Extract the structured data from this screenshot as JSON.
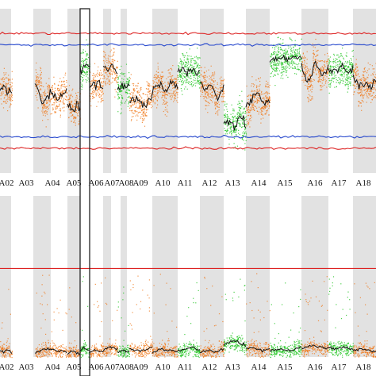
{
  "chart_data": [
    {
      "type": "scatter",
      "panel": "top",
      "chromosomes": [
        "A02",
        "A03",
        "A04",
        "A05",
        "A06",
        "A07",
        "A08",
        "A09",
        "A10",
        "A11",
        "A12",
        "A13",
        "A14",
        "A15",
        "A16",
        "A17",
        "A18"
      ],
      "segments": [
        {
          "chrom": "A02",
          "color": "orange",
          "trend": [
            0.0,
            0.02,
            -0.01,
            0.02,
            0.0
          ]
        },
        {
          "chrom": "A03",
          "color": "orange",
          "trend": [
            0.05,
            -0.08,
            -0.02,
            -0.05,
            0.0
          ]
        },
        {
          "chrom": "A04",
          "color": "orange",
          "trend": [
            -0.08,
            -0.1,
            -0.12,
            -0.09,
            -0.11
          ]
        },
        {
          "chrom": "A05",
          "color": "green",
          "trend": [
            0.12,
            0.15,
            0.14,
            0.16,
            0.13
          ]
        },
        {
          "chrom": "A06",
          "color": "orange",
          "trend": [
            0.02,
            0.05,
            0.03,
            0.04,
            0.02
          ]
        },
        {
          "chrom": "A07",
          "color": "orange",
          "trend": [
            0.15,
            0.12,
            0.16,
            0.1
          ]
        },
        {
          "chrom": "A08",
          "color": "green",
          "trend": [
            0.0,
            0.03,
            0.02
          ]
        },
        {
          "chrom": "A09",
          "color": "orange",
          "trend": [
            -0.05,
            -0.06,
            -0.1,
            -0.04
          ]
        },
        {
          "chrom": "A10",
          "color": "orange",
          "trend": [
            0.0,
            0.06,
            -0.02,
            0.05,
            0.02
          ]
        },
        {
          "chrom": "A11",
          "color": "green",
          "trend": [
            0.12,
            0.12,
            0.13,
            0.12,
            0.12
          ]
        },
        {
          "chrom": "A12",
          "color": "orange",
          "trend": [
            0.05,
            0.0,
            0.03,
            -0.05,
            0.02
          ]
        },
        {
          "chrom": "A13",
          "color": "green",
          "trend": [
            -0.18,
            -0.2,
            -0.22,
            -0.15,
            -0.2
          ]
        },
        {
          "chrom": "A14",
          "color": "orange",
          "trend": [
            -0.1,
            -0.05,
            -0.02,
            -0.08,
            -0.05
          ]
        },
        {
          "chrom": "A15",
          "color": "green",
          "trend": [
            0.18,
            0.2,
            0.19,
            0.21,
            0.2
          ]
        },
        {
          "chrom": "A16",
          "color": "orange",
          "trend": [
            0.15,
            0.05,
            0.18,
            0.1,
            0.12
          ]
        },
        {
          "chrom": "A17",
          "color": "green",
          "trend": [
            0.13,
            0.12,
            0.14,
            0.12,
            0.13
          ]
        },
        {
          "chrom": "A18",
          "color": "orange",
          "trend": [
            0.08,
            0.02,
            0.05,
            0.03,
            0.05
          ]
        }
      ],
      "threshold_lines": [
        {
          "color": "red",
          "value": 0.35
        },
        {
          "color": "blue",
          "value": 0.28
        },
        {
          "color": "blue",
          "value": -0.28
        },
        {
          "color": "red",
          "value": -0.35
        }
      ],
      "highlighted_chromosome": "A05"
    },
    {
      "type": "scatter",
      "panel": "bottom",
      "chromosomes": [
        "A02",
        "A03",
        "A04",
        "A05",
        "A06",
        "A07",
        "A08",
        "A09",
        "A10",
        "A11",
        "A12",
        "A13",
        "A14",
        "A15",
        "A16",
        "A17",
        "A18"
      ],
      "segments": [
        {
          "chrom": "A02",
          "color": "orange",
          "trend": [
            0.04,
            0.03,
            0.05,
            0.02
          ]
        },
        {
          "chrom": "A03",
          "color": "orange",
          "trend": [
            0.03,
            0.05,
            0.04,
            0.03
          ]
        },
        {
          "chrom": "A04",
          "color": "orange",
          "trend": [
            0.02,
            0.04,
            0.03,
            0.02
          ]
        },
        {
          "chrom": "A05",
          "color": "green",
          "trend": [
            0.04,
            0.06,
            0.05,
            0.04
          ]
        },
        {
          "chrom": "A06",
          "color": "orange",
          "trend": [
            0.03,
            0.05,
            0.03,
            0.04
          ]
        },
        {
          "chrom": "A07",
          "color": "orange",
          "trend": [
            0.04,
            0.06,
            0.05
          ]
        },
        {
          "chrom": "A08",
          "color": "green",
          "trend": [
            0.03,
            0.04,
            0.03
          ]
        },
        {
          "chrom": "A09",
          "color": "orange",
          "trend": [
            0.05,
            0.04,
            0.06
          ]
        },
        {
          "chrom": "A10",
          "color": "orange",
          "trend": [
            0.03,
            0.05,
            0.04,
            0.03
          ]
        },
        {
          "chrom": "A11",
          "color": "green",
          "trend": [
            0.04,
            0.05,
            0.06,
            0.04
          ]
        },
        {
          "chrom": "A12",
          "color": "orange",
          "trend": [
            0.03,
            0.04,
            0.03,
            0.05
          ]
        },
        {
          "chrom": "A13",
          "color": "green",
          "trend": [
            0.08,
            0.1,
            0.09,
            0.07
          ]
        },
        {
          "chrom": "A14",
          "color": "orange",
          "trend": [
            0.05,
            0.06,
            0.04,
            0.05
          ]
        },
        {
          "chrom": "A15",
          "color": "green",
          "trend": [
            0.04,
            0.05,
            0.04,
            0.06
          ]
        },
        {
          "chrom": "A16",
          "color": "orange",
          "trend": [
            0.05,
            0.07,
            0.06,
            0.05
          ]
        },
        {
          "chrom": "A17",
          "color": "green",
          "trend": [
            0.06,
            0.05,
            0.06,
            0.05
          ]
        },
        {
          "chrom": "A18",
          "color": "orange",
          "trend": [
            0.04,
            0.05,
            0.04,
            0.03
          ]
        }
      ],
      "threshold_lines": [
        {
          "color": "red",
          "value": 0.55
        }
      ],
      "highlighted_chromosome": "A05"
    }
  ],
  "colors": {
    "band": "#e2e2e2",
    "orange": "#f07a1e",
    "green": "#22c422",
    "trend": "#111111",
    "red": "#dd2222",
    "blue": "#2244cc",
    "highlight": "#222222"
  }
}
